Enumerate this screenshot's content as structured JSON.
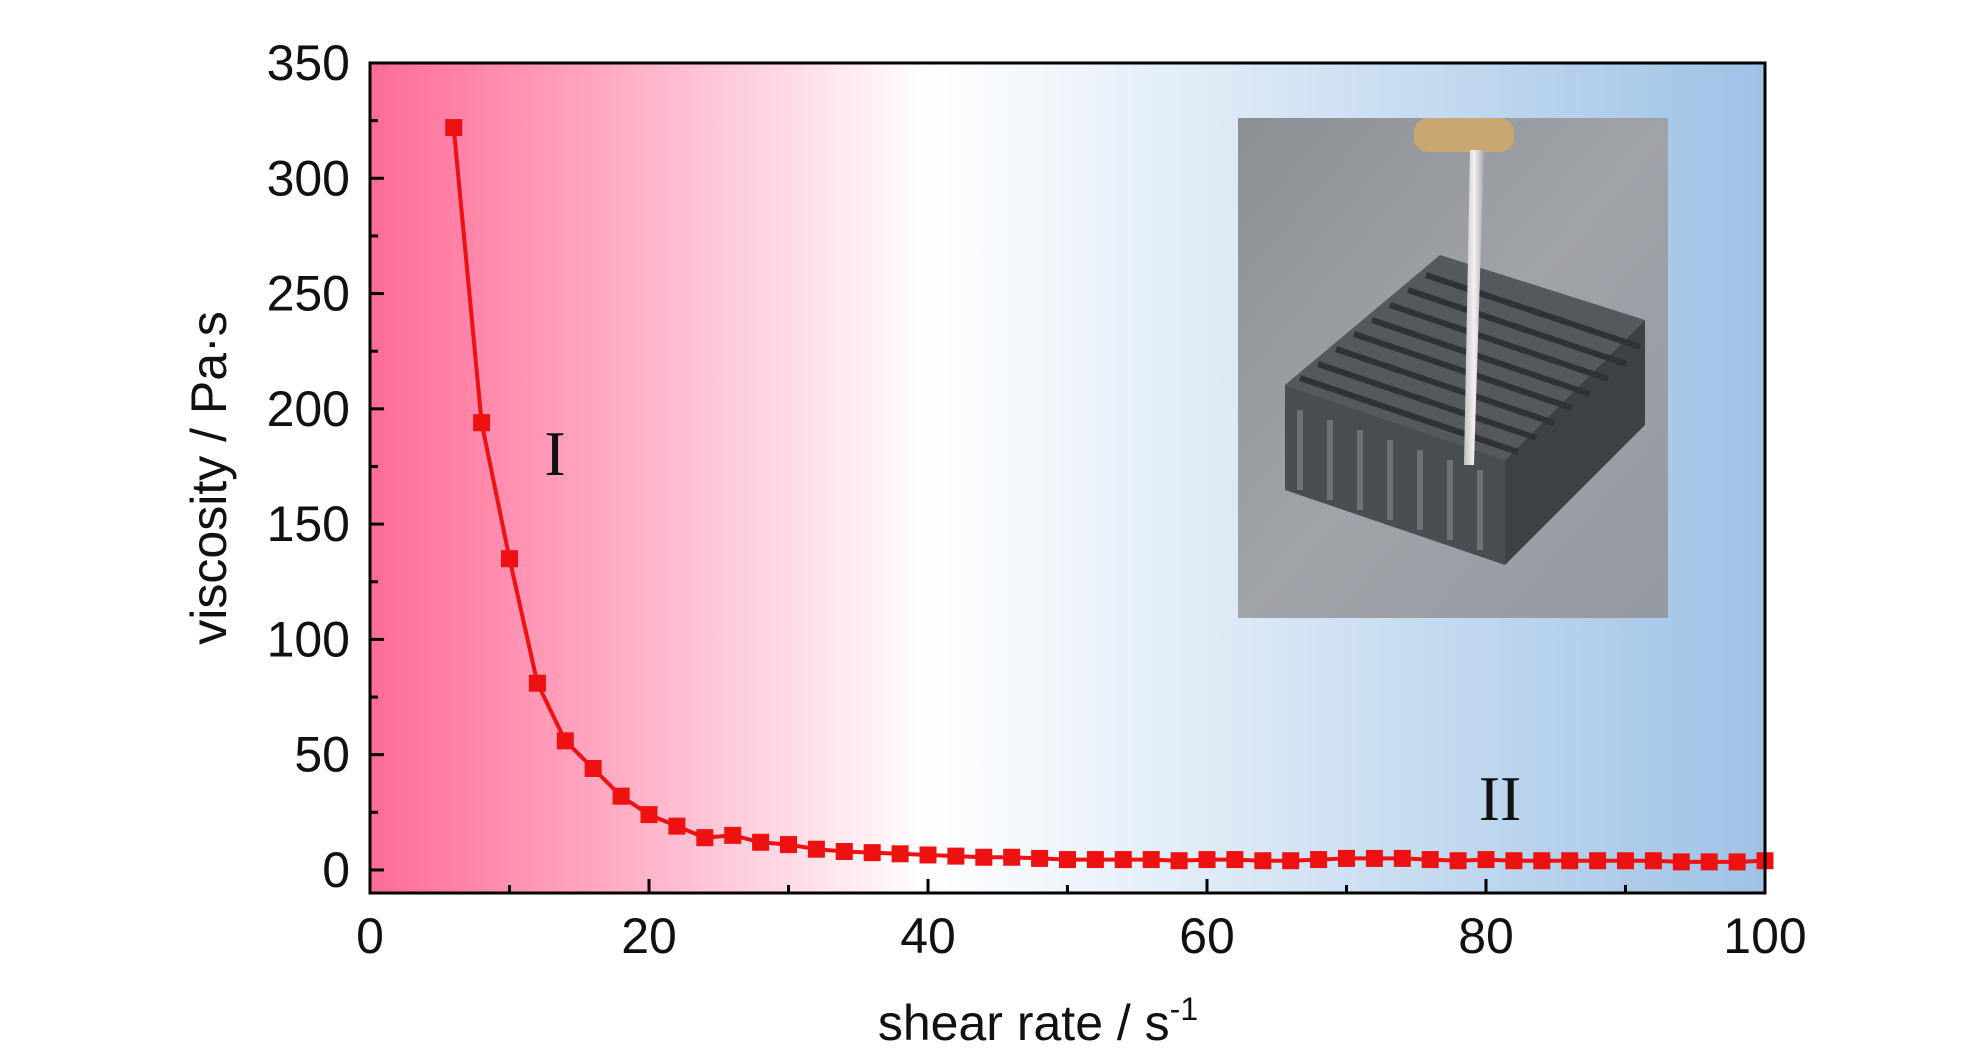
{
  "chart_data": {
    "type": "line",
    "xlabel": "shear rate / s",
    "xlabel_superscript": "-1",
    "ylabel": "viscosity / Pa·s",
    "xlim": [
      0,
      100
    ],
    "ylim": [
      -10,
      350
    ],
    "xticks": [
      0,
      20,
      40,
      60,
      80,
      100
    ],
    "yticks": [
      0,
      50,
      100,
      150,
      200,
      250,
      300,
      350
    ],
    "grid": false,
    "legend": "none",
    "annotations": [
      "I",
      "II"
    ],
    "background_gradient": [
      "#ff6b96",
      "#ffffff",
      "#9ec2e6"
    ],
    "series_color": "#ee1111",
    "series": [
      {
        "marker": "square",
        "x": [
          6,
          8,
          10,
          12,
          14,
          16,
          18,
          20,
          22,
          24,
          26,
          28,
          30,
          32,
          34,
          36,
          38,
          40,
          42,
          44,
          46,
          48,
          50,
          52,
          54,
          56,
          58,
          60,
          62,
          64,
          66,
          68,
          70,
          72,
          74,
          76,
          78,
          80,
          82,
          84,
          86,
          88,
          90,
          92,
          94,
          96,
          98,
          100
        ],
        "values": [
          322,
          194,
          135,
          81,
          56,
          44,
          32,
          24,
          19,
          14,
          15,
          12,
          11,
          9,
          8,
          7.5,
          7,
          6.5,
          6,
          5.5,
          5.5,
          5,
          4.5,
          4.5,
          4.5,
          4.5,
          4,
          4.5,
          4.5,
          4,
          4,
          4.5,
          5,
          5,
          5,
          4.5,
          4,
          4.5,
          4,
          4,
          4,
          4,
          4,
          4,
          3.5,
          3.5,
          3.5,
          4
        ]
      }
    ]
  },
  "inset": {
    "name": "3D-printed lattice photo"
  }
}
